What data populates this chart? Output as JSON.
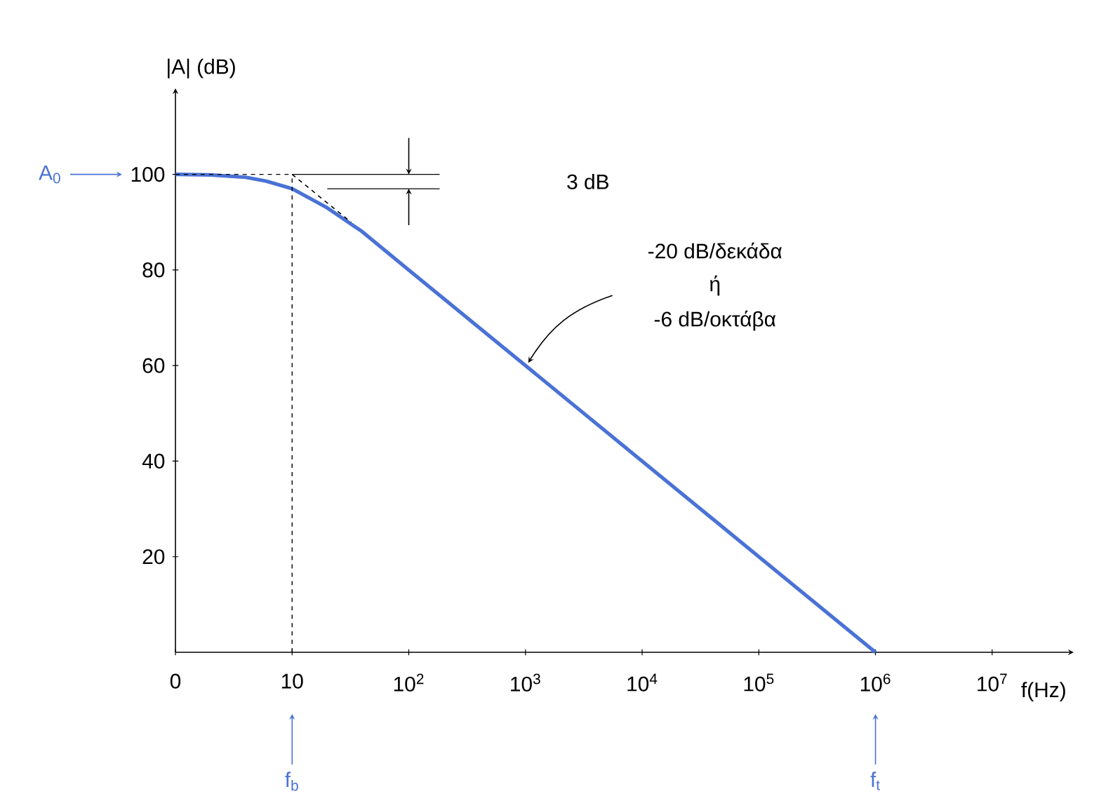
{
  "chart_data": {
    "type": "line",
    "xlabel": "f(Hz)",
    "ylabel": "|A| (dB)",
    "log": "x",
    "xlim": [
      0,
      50000000
    ],
    "ylim": [
      0,
      118
    ],
    "xticks": [
      0,
      10,
      {
        "value": 100,
        "label": "10$^{2}$"
      },
      {
        "value": 1000,
        "label": "10$^{3}$"
      },
      {
        "value": 10000,
        "label": "10$^{4}$"
      },
      {
        "value": 100000,
        "label": "10$^{5}$"
      },
      {
        "value": 1000000,
        "label": "10$^{6}$"
      },
      {
        "value": 10000000,
        "label": "10$^{7}$"
      }
    ],
    "yticks": [
      20,
      40,
      60,
      80,
      100
    ],
    "series": [
      {
        "color": "#4a72d6",
        "line_style": "solid",
        "x": [
          1,
          2,
          4,
          6,
          10,
          20,
          40,
          100,
          1000,
          10000,
          100000,
          1000000
        ],
        "values": [
          100,
          99.9,
          99.4,
          98.6,
          97,
          93,
          88,
          80,
          60,
          40,
          20,
          0
        ]
      },
      {
        "color": "#000000",
        "line_style": "dashed",
        "x": [
          10,
          32
        ],
        "values": [
          100,
          90
        ]
      }
    ],
    "ref_lines": [
      {
        "axis": "y",
        "value": 100,
        "line_style": "dashed",
        "color": "#000000"
      },
      {
        "axis": "x",
        "value": 10,
        "line_style": "dashed",
        "color": "#000000"
      },
      {
        "axis": "y",
        "value": 97,
        "line_style": "solid",
        "color": "#000000"
      }
    ],
    "annotations": [
      "A$_{0}$",
      "f$_{b}$",
      "f$_{t}$",
      "3 dB",
      "-20 dB/δεκάδα",
      "ή",
      "-6 dB/οκτάβα"
    ]
  }
}
